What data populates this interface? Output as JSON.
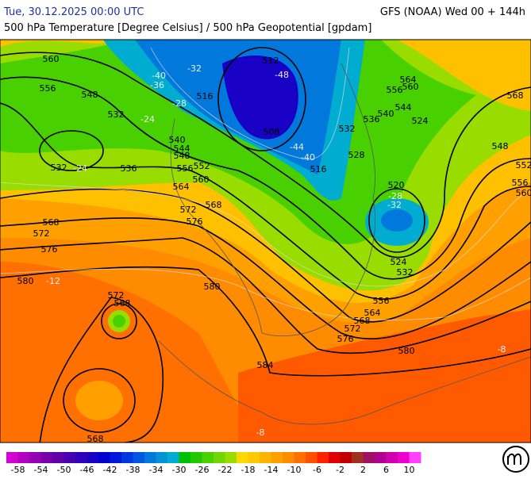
{
  "header": {
    "left": "Tue, 30.12.2025 00:00 UTC",
    "right": "GFS (NOAA) Wed 00 + 144h",
    "subtitle": "500 hPa Temperature [Degree Celsius] / 500 hPa Geopotential [gpdam]"
  },
  "map": {
    "height_labels": [
      560,
      556,
      548,
      532,
      532,
      536,
      540,
      544,
      548,
      556,
      552,
      560,
      564,
      572,
      568,
      576,
      568,
      572,
      576,
      580,
      580,
      572,
      568,
      516,
      512,
      508,
      516,
      528,
      532,
      536,
      540,
      544,
      556,
      560,
      564,
      524,
      568,
      548,
      552,
      556,
      560,
      520,
      524,
      532,
      556,
      564,
      568,
      572,
      576,
      580,
      584,
      568
    ],
    "temperature_labels": [
      -40,
      -36,
      -32,
      -28,
      -48,
      -44,
      -40,
      -32,
      -28,
      -24,
      -24,
      -12,
      -8,
      -8
    ]
  },
  "colorbar": {
    "range": [
      -60,
      12
    ],
    "colors": [
      "#d400d4",
      "#b400c0",
      "#9600b4",
      "#7800a8",
      "#6000a8",
      "#4800b0",
      "#3000b8",
      "#1800c4",
      "#0000d0",
      "#0018dc",
      "#0038e0",
      "#0058e0",
      "#0078dc",
      "#0094d4",
      "#00acd0",
      "#00c000",
      "#20c800",
      "#48d000",
      "#70d800",
      "#98dc00",
      "#ffd800",
      "#ffc800",
      "#ffb400",
      "#ffa000",
      "#ff8c00",
      "#ff7000",
      "#ff5000",
      "#ff2000",
      "#e00000",
      "#c00000",
      "#a03020",
      "#a01060",
      "#b00090",
      "#d000b0",
      "#f000d0",
      "#ff40ff"
    ],
    "ticks": [
      -58,
      -54,
      -50,
      -46,
      -42,
      -38,
      -34,
      -30,
      -26,
      -22,
      -18,
      -14,
      -10,
      -6,
      -2,
      2,
      6,
      10
    ]
  }
}
